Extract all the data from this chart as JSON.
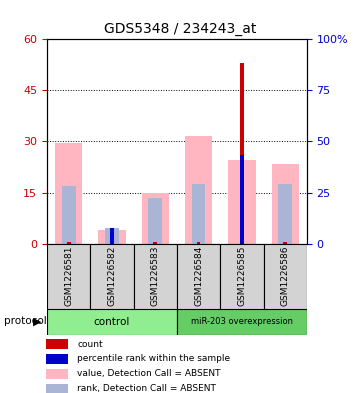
{
  "title": "GDS5348 / 234243_at",
  "samples": [
    "GSM1226581",
    "GSM1226582",
    "GSM1226583",
    "GSM1226584",
    "GSM1226585",
    "GSM1226586"
  ],
  "pink_values": [
    29.5,
    4.0,
    15.0,
    31.5,
    24.5,
    23.5
  ],
  "blue_rank_values": [
    17.0,
    4.5,
    13.5,
    17.5,
    0.0,
    17.5
  ],
  "red_count_values": [
    0.5,
    0.5,
    0.5,
    0.5,
    53.0,
    0.5
  ],
  "blue_pct_values": [
    0.0,
    4.5,
    0.0,
    0.0,
    26.0,
    0.0
  ],
  "ylim_left": [
    0,
    60
  ],
  "ylim_right": [
    0,
    100
  ],
  "yticks_left": [
    0,
    15,
    30,
    45,
    60
  ],
  "ytick_labels_left": [
    "0",
    "15",
    "30",
    "45",
    "60"
  ],
  "yticks_right": [
    0,
    25,
    50,
    75,
    100
  ],
  "ytick_labels_right": [
    "0",
    "25",
    "50",
    "75",
    "100%"
  ],
  "pink_color": "#FFB6C1",
  "light_blue_color": "#aab4d4",
  "red_color": "#cc0000",
  "blue_color": "#0000cc",
  "bg_color": "#ffffff",
  "legend_items": [
    {
      "label": "count",
      "color": "#cc0000"
    },
    {
      "label": "percentile rank within the sample",
      "color": "#0000cc"
    },
    {
      "label": "value, Detection Call = ABSENT",
      "color": "#FFB6C1"
    },
    {
      "label": "rank, Detection Call = ABSENT",
      "color": "#aab4d4"
    }
  ]
}
